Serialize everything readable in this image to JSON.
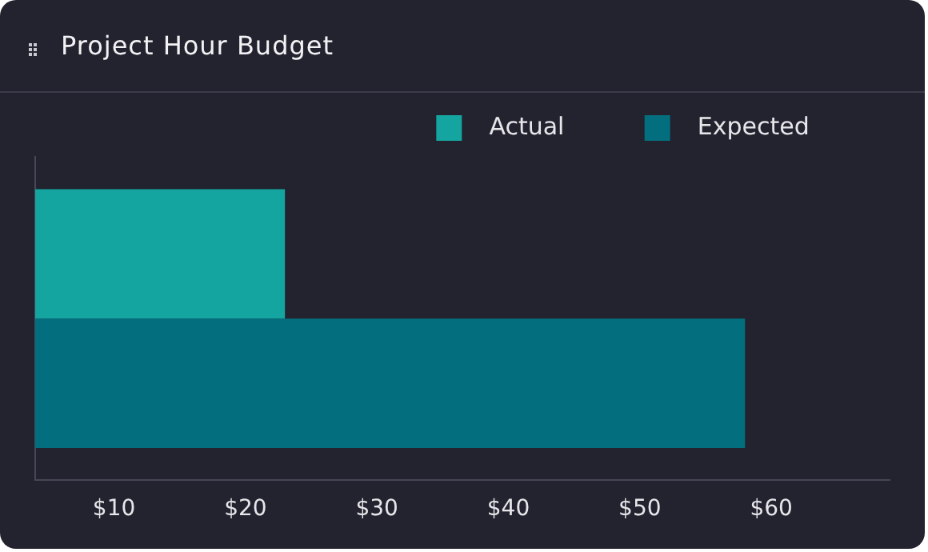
{
  "chart_data": {
    "type": "bar",
    "title": "Project Hour Budget",
    "orientation": "horizontal",
    "categories": [
      null
    ],
    "series": [
      {
        "name": "Actual",
        "color": "#14a5a0",
        "values": [
          23
        ]
      },
      {
        "name": "Expected",
        "color": "#036e7e",
        "values": [
          58
        ]
      }
    ],
    "xlim": [
      4,
      69
    ],
    "xticks": [
      {
        "value": 10,
        "label": "$10"
      },
      {
        "value": 20,
        "label": "$20"
      },
      {
        "value": 30,
        "label": "$30"
      },
      {
        "value": 40,
        "label": "$40"
      },
      {
        "value": 50,
        "label": "$50"
      },
      {
        "value": 60,
        "label": "$60"
      }
    ],
    "grid": false,
    "legend": "top right",
    "tick_labels": "x"
  }
}
